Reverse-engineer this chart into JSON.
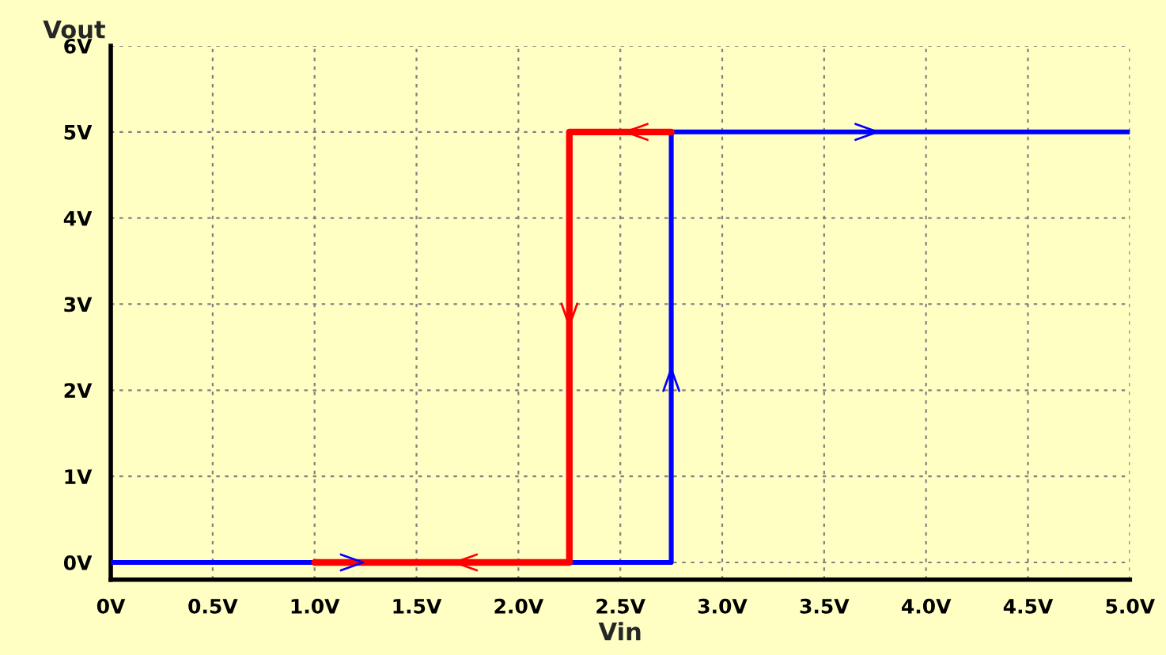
{
  "chart_data": {
    "type": "line",
    "xlabel": "Vin",
    "ylabel": "Vout",
    "xlim": [
      0,
      5.0
    ],
    "ylim": [
      -0.2,
      6
    ],
    "xticks": [
      {
        "value": 0,
        "label": "0V"
      },
      {
        "value": 0.5,
        "label": "0.5V"
      },
      {
        "value": 1.0,
        "label": "1.0V"
      },
      {
        "value": 1.5,
        "label": "1.5V"
      },
      {
        "value": 2.0,
        "label": "2.0V"
      },
      {
        "value": 2.5,
        "label": "2.5V"
      },
      {
        "value": 3.0,
        "label": "3.0V"
      },
      {
        "value": 3.5,
        "label": "3.5V"
      },
      {
        "value": 4.0,
        "label": "4.0V"
      },
      {
        "value": 4.5,
        "label": "4.5V"
      },
      {
        "value": 5.0,
        "label": "5.0V"
      }
    ],
    "yticks": [
      {
        "value": 0,
        "label": "0V"
      },
      {
        "value": 1,
        "label": "1V"
      },
      {
        "value": 2,
        "label": "2V"
      },
      {
        "value": 3,
        "label": "3V"
      },
      {
        "value": 4,
        "label": "4V"
      },
      {
        "value": 5,
        "label": "5V"
      },
      {
        "value": 6,
        "label": "6V"
      }
    ],
    "grid": true,
    "line_style": "solid",
    "series": [
      {
        "color": "#0000ff",
        "x": [
          0,
          2.75,
          2.75,
          5.0
        ],
        "values": [
          0,
          0,
          5,
          5
        ]
      },
      {
        "color": "#ff0000",
        "x": [
          2.75,
          2.25,
          2.25,
          1.0
        ],
        "values": [
          5,
          5,
          0,
          0
        ]
      }
    ]
  }
}
